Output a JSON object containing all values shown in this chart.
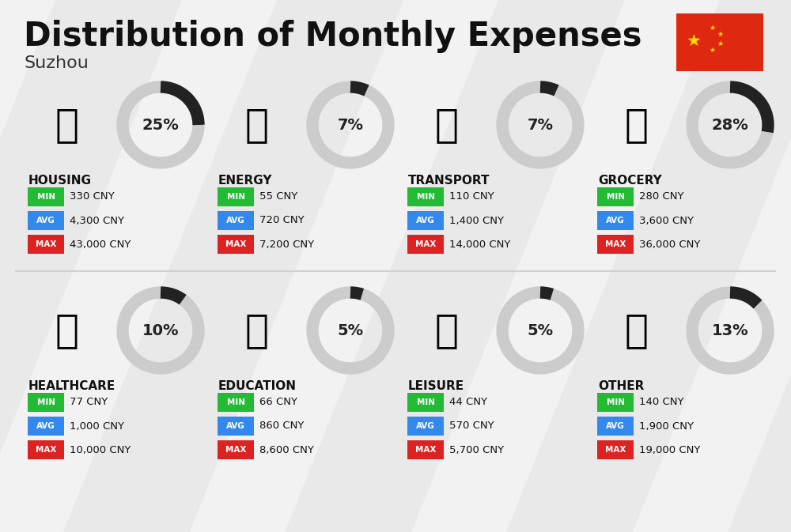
{
  "title": "Distribution of Monthly Expenses",
  "subtitle": "Suzhou",
  "bg_color": "#f2f2f2",
  "categories": [
    {
      "name": "HOUSING",
      "pct": 25,
      "min_val": "330 CNY",
      "avg_val": "4,300 CNY",
      "max_val": "43,000 CNY",
      "col": 0,
      "row": 0
    },
    {
      "name": "ENERGY",
      "pct": 7,
      "min_val": "55 CNY",
      "avg_val": "720 CNY",
      "max_val": "7,200 CNY",
      "col": 1,
      "row": 0
    },
    {
      "name": "TRANSPORT",
      "pct": 7,
      "min_val": "110 CNY",
      "avg_val": "1,400 CNY",
      "max_val": "14,000 CNY",
      "col": 2,
      "row": 0
    },
    {
      "name": "GROCERY",
      "pct": 28,
      "min_val": "280 CNY",
      "avg_val": "3,600 CNY",
      "max_val": "36,000 CNY",
      "col": 3,
      "row": 0
    },
    {
      "name": "HEALTHCARE",
      "pct": 10,
      "min_val": "77 CNY",
      "avg_val": "1,000 CNY",
      "max_val": "10,000 CNY",
      "col": 0,
      "row": 1
    },
    {
      "name": "EDUCATION",
      "pct": 5,
      "min_val": "66 CNY",
      "avg_val": "860 CNY",
      "max_val": "8,600 CNY",
      "col": 1,
      "row": 1
    },
    {
      "name": "LEISURE",
      "pct": 5,
      "min_val": "44 CNY",
      "avg_val": "570 CNY",
      "max_val": "5,700 CNY",
      "col": 2,
      "row": 1
    },
    {
      "name": "OTHER",
      "pct": 13,
      "min_val": "140 CNY",
      "avg_val": "1,900 CNY",
      "max_val": "19,000 CNY",
      "col": 3,
      "row": 1
    }
  ],
  "min_color": "#22bb33",
  "avg_color": "#3388ee",
  "max_color": "#dd2222",
  "ring_bg_color": "#cccccc",
  "ring_fg_color": "#222222",
  "value_text_color": "#111111",
  "cat_name_color": "#111111",
  "flag_red": "#de2910",
  "flag_yellow": "#ffde00",
  "stripe_color": "#e6e6e6"
}
